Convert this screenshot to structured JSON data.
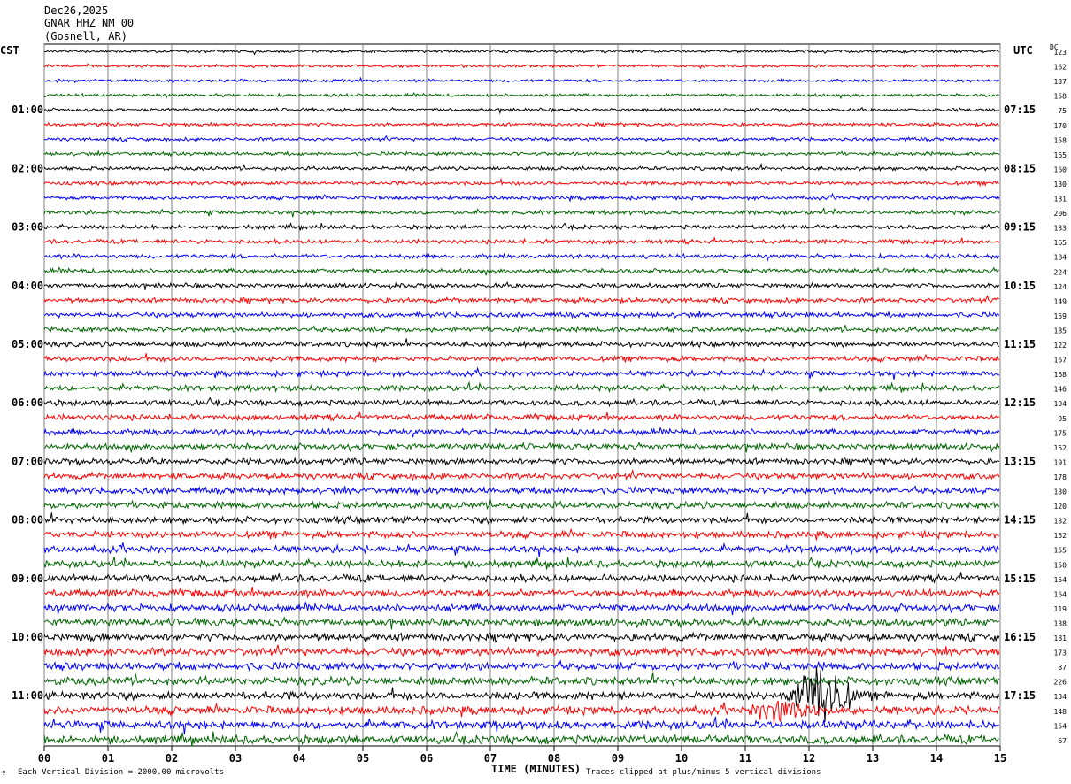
{
  "header": {
    "date": "Dec26,2025",
    "station": "GNAR HHZ NM 00",
    "location": "(Gosnell, AR)"
  },
  "left_tz": "CST",
  "right_tz": "UTC",
  "dc_label": "DC",
  "footer": {
    "scale": "Each Vertical Division = 2000.00 microvolts",
    "clip": "Traces clipped at plus/minus 5 vertical divisions",
    "corner": "♀"
  },
  "colors": {
    "trace_cycle": [
      "#000000",
      "#ff0000",
      "#0000ff",
      "#006400"
    ],
    "grid": "#808080"
  },
  "chart_data": {
    "type": "line",
    "title": "",
    "xlabel": "TIME (MINUTES)",
    "x_ticks": [
      "00",
      "01",
      "02",
      "03",
      "04",
      "05",
      "06",
      "07",
      "08",
      "09",
      "10",
      "11",
      "12",
      "13",
      "14",
      "15"
    ],
    "xlim": [
      0,
      15
    ],
    "left_hour_labels": [
      "01:00",
      "02:00",
      "03:00",
      "04:00",
      "05:00",
      "06:00",
      "07:00",
      "08:00",
      "09:00",
      "10:00",
      "11:00"
    ],
    "right_hour_labels": [
      "07:15",
      "08:15",
      "09:15",
      "10:15",
      "11:15",
      "12:15",
      "13:15",
      "14:15",
      "15:15",
      "16:15",
      "17:15"
    ],
    "dc_offsets": [
      123,
      162,
      137,
      158,
      75,
      170,
      158,
      165,
      160,
      130,
      181,
      206,
      133,
      165,
      184,
      224,
      124,
      149,
      159,
      185,
      122,
      167,
      168,
      146,
      194,
      95,
      175,
      152,
      191,
      178,
      130,
      120,
      132,
      152,
      155,
      150,
      154,
      164,
      119,
      138,
      181,
      173,
      87,
      226,
      134,
      148,
      154,
      67
    ],
    "rows": 48,
    "minutes_per_row": 15,
    "events": [
      {
        "row": 44,
        "minute": 12.2,
        "amplitude": "large"
      },
      {
        "row": 45,
        "minute": 11.6,
        "amplitude": "medium"
      }
    ]
  }
}
